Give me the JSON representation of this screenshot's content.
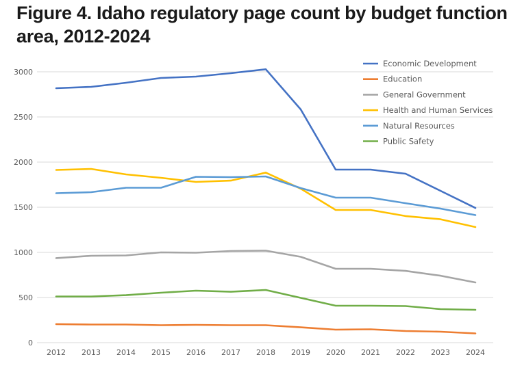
{
  "chart_data": {
    "type": "line",
    "title": "Figure 4. Idaho regulatory page count by budget function area, 2012-2024",
    "xlabel": "",
    "ylabel": "",
    "ylim": [
      0,
      3000
    ],
    "yticks": [
      "0",
      "500",
      "1000",
      "1500",
      "2000",
      "2500",
      "3000"
    ],
    "ytick_values": [
      0,
      500,
      1000,
      1500,
      2000,
      2500,
      3000
    ],
    "grid": true,
    "legend_position": "top-right",
    "categories": [
      "2012",
      "2013",
      "2014",
      "2015",
      "2016",
      "2017",
      "2018",
      "2019",
      "2020",
      "2021",
      "2022",
      "2023",
      "2024"
    ],
    "series": [
      {
        "name": "Economic Development",
        "color": "#4472C4",
        "values": [
          2818,
          2833,
          2879,
          2932,
          2947,
          2985,
          3028,
          2583,
          1917,
          1917,
          1871,
          1682,
          1492
        ]
      },
      {
        "name": "Education",
        "color": "#ED7D31",
        "values": [
          205,
          201,
          201,
          193,
          197,
          193,
          193,
          170,
          144,
          148,
          129,
          121,
          102
        ]
      },
      {
        "name": "General Government",
        "color": "#A5A5A5",
        "values": [
          936,
          962,
          966,
          1000,
          996,
          1015,
          1019,
          951,
          818,
          818,
          795,
          742,
          667
        ]
      },
      {
        "name": "Health and Human Services",
        "color": "#FFC000",
        "values": [
          1913,
          1924,
          1864,
          1826,
          1780,
          1795,
          1883,
          1705,
          1470,
          1470,
          1402,
          1367,
          1280
        ]
      },
      {
        "name": "Natural Resources",
        "color": "#5B9BD5",
        "values": [
          1655,
          1667,
          1716,
          1716,
          1837,
          1833,
          1841,
          1712,
          1606,
          1606,
          1545,
          1485,
          1413
        ]
      },
      {
        "name": "Public Safety",
        "color": "#70AD47",
        "values": [
          511,
          511,
          526,
          553,
          576,
          564,
          583,
          496,
          409,
          409,
          405,
          371,
          364
        ]
      }
    ]
  }
}
